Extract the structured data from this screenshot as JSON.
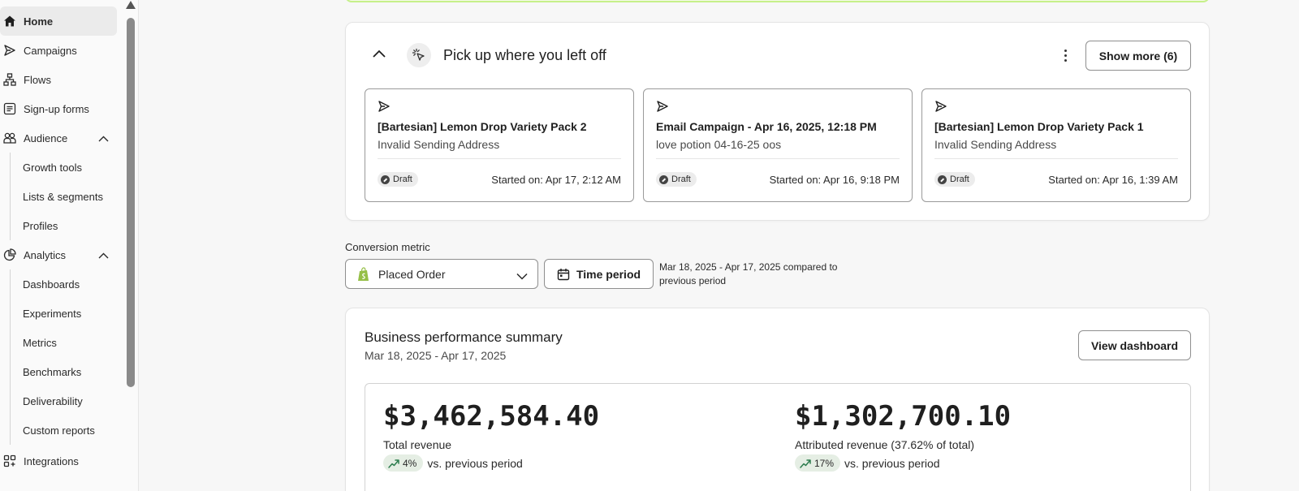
{
  "sidebar": {
    "items": [
      {
        "label": "Home",
        "icon": "home-icon"
      },
      {
        "label": "Campaigns",
        "icon": "send-icon"
      },
      {
        "label": "Flows",
        "icon": "flow-icon"
      },
      {
        "label": "Sign-up forms",
        "icon": "form-icon"
      },
      {
        "label": "Audience",
        "icon": "audience-icon"
      },
      {
        "label": "Analytics",
        "icon": "analytics-icon"
      },
      {
        "label": "Integrations",
        "icon": "integrations-icon"
      }
    ],
    "audience_sub": [
      "Growth tools",
      "Lists & segments",
      "Profiles"
    ],
    "analytics_sub": [
      "Dashboards",
      "Experiments",
      "Metrics",
      "Benchmarks",
      "Deliverability",
      "Custom reports"
    ]
  },
  "pick_up": {
    "title": "Pick up where you left off",
    "show_more_label": "Show more (6)",
    "items": [
      {
        "title": "[Bartesian] Lemon Drop Variety Pack 2",
        "subtitle": "Invalid Sending Address",
        "status": "Draft",
        "started": "Started on: Apr 17, 2:12 AM"
      },
      {
        "title": "Email Campaign - Apr 16, 2025, 12:18 PM",
        "subtitle": "love potion 04-16-25 oos",
        "status": "Draft",
        "started": "Started on: Apr 16, 9:18 PM"
      },
      {
        "title": "[Bartesian] Lemon Drop Variety Pack 1",
        "subtitle": "Invalid Sending Address",
        "status": "Draft",
        "started": "Started on: Apr 16, 1:39 AM"
      }
    ]
  },
  "conversion": {
    "label": "Conversion metric",
    "selected": "Placed Order",
    "time_period_label": "Time period",
    "date_range_line1": "Mar 18, 2025 - Apr 17, 2025 compared to",
    "date_range_line2": "previous period"
  },
  "performance": {
    "title": "Business performance summary",
    "subtitle": "Mar 18, 2025 - Apr 17, 2025",
    "view_dashboard_label": "View dashboard",
    "metrics": [
      {
        "value": "$3,462,584.40",
        "label": "Total revenue",
        "change": "4%",
        "vs": "vs. previous period"
      },
      {
        "value": "$1,302,700.10",
        "label": "Attributed revenue (37.62% of total)",
        "change": "17%",
        "vs": "vs. previous period"
      }
    ]
  },
  "colors": {
    "banner_border": "#c6f08a",
    "trend_pill": "#e5eee4",
    "trend_arrow": "#2e7d4f",
    "shopify_green": "#95bf47"
  }
}
